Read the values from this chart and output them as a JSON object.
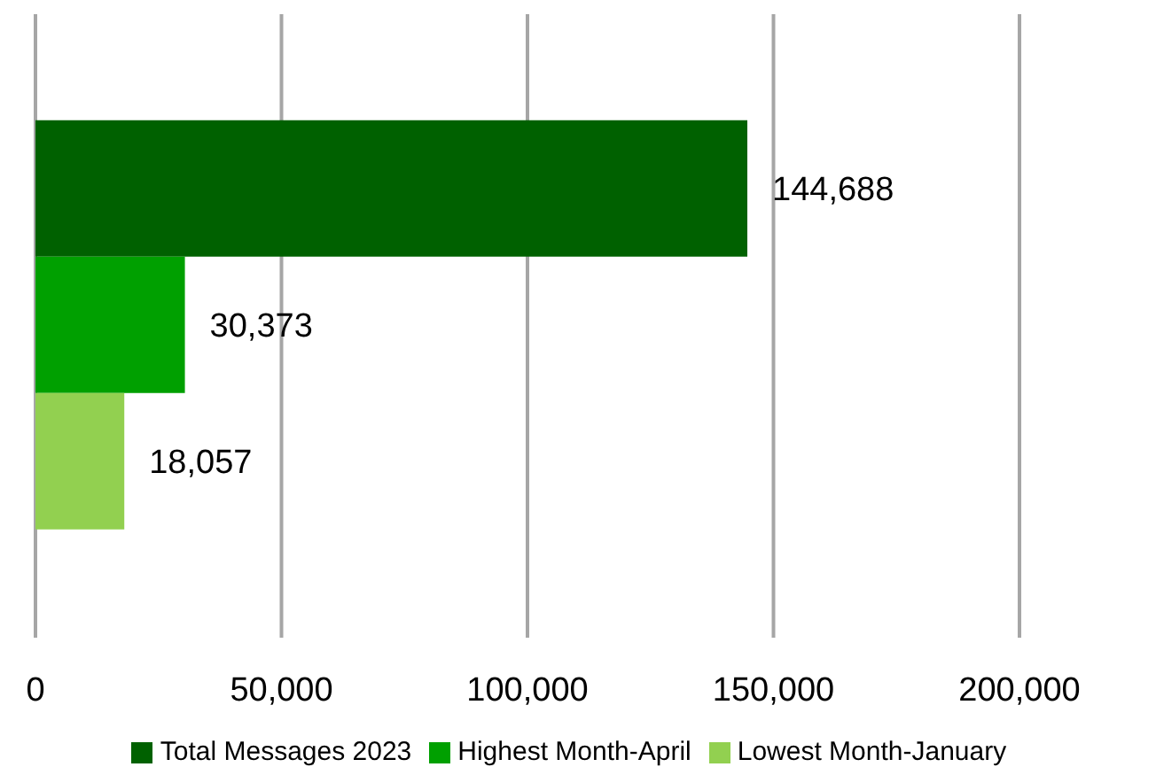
{
  "chart_data": {
    "type": "bar",
    "orientation": "horizontal",
    "categories": [
      null
    ],
    "series": [
      {
        "name": "Total Messages 2023",
        "color": "#006100",
        "values": [
          144688
        ],
        "value_labels": [
          "144,688"
        ]
      },
      {
        "name": "Highest Month-April",
        "color": "#00a000",
        "values": [
          30373
        ],
        "value_labels": [
          "30,373"
        ]
      },
      {
        "name": "Lowest Month-January",
        "color": "#92d050",
        "values": [
          18057
        ],
        "value_labels": [
          "18,057"
        ]
      }
    ],
    "xlim": [
      0,
      200000
    ],
    "xticks": [
      0,
      {
        "value": 50000,
        "label": "50,000"
      },
      {
        "value": 100000,
        "label": "100,000"
      },
      {
        "value": 150000,
        "label": "150,000"
      },
      {
        "value": 200000,
        "label": "200,000"
      }
    ],
    "grid": "x",
    "legend": "bottom"
  }
}
